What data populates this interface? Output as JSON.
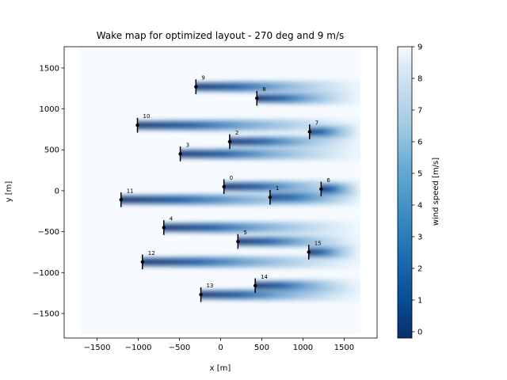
{
  "chart_data": {
    "type": "heatmap",
    "title": "Wake map for optimized layout -  270 deg and 9 m/s",
    "xlabel": "x [m]",
    "ylabel": "y [m]",
    "xlim": [
      -1900,
      1900
    ],
    "ylim": [
      -1800,
      1760
    ],
    "x_ticks": [
      -1500,
      -1000,
      -500,
      0,
      500,
      1000,
      1500
    ],
    "x_tick_labels": [
      "−1500",
      "−1000",
      "−500",
      "0",
      "500",
      "1000",
      "1500"
    ],
    "y_ticks": [
      1500,
      1000,
      500,
      0,
      -500,
      -1000,
      -1500
    ],
    "y_tick_labels": [
      "1500",
      "1000",
      "500",
      "0",
      "−500",
      "−1000",
      "−1500"
    ],
    "field_extent": {
      "x": [
        -1700,
        1700
      ],
      "y": [
        -1750,
        1750
      ]
    },
    "free_stream_speed": 9,
    "colorbar": {
      "label": "wind speed [m/s]",
      "min": -0.2,
      "max": 9,
      "ticks": [
        0,
        1,
        2,
        3,
        4,
        5,
        6,
        7,
        8,
        9
      ],
      "tick_labels": [
        "0",
        "1",
        "2",
        "3",
        "4",
        "5",
        "6",
        "7",
        "8",
        "9"
      ],
      "colormap": "Blues_r",
      "dark_color": "#08306b",
      "light_color": "#f7fbff"
    },
    "turbines": [
      {
        "id": "0",
        "x": 40,
        "y": 50
      },
      {
        "id": "1",
        "x": 600,
        "y": -80
      },
      {
        "id": "2",
        "x": 110,
        "y": 600
      },
      {
        "id": "3",
        "x": -490,
        "y": 450
      },
      {
        "id": "4",
        "x": -690,
        "y": -450
      },
      {
        "id": "5",
        "x": 210,
        "y": -620
      },
      {
        "id": "6",
        "x": 1220,
        "y": 20
      },
      {
        "id": "7",
        "x": 1080,
        "y": 720
      },
      {
        "id": "8",
        "x": 440,
        "y": 1130
      },
      {
        "id": "9",
        "x": -300,
        "y": 1270
      },
      {
        "id": "10",
        "x": -1010,
        "y": 800
      },
      {
        "id": "11",
        "x": -1210,
        "y": -110
      },
      {
        "id": "12",
        "x": -950,
        "y": -870
      },
      {
        "id": "13",
        "x": -240,
        "y": -1270
      },
      {
        "id": "14",
        "x": 420,
        "y": -1160
      },
      {
        "id": "15",
        "x": 1070,
        "y": -750
      }
    ]
  }
}
